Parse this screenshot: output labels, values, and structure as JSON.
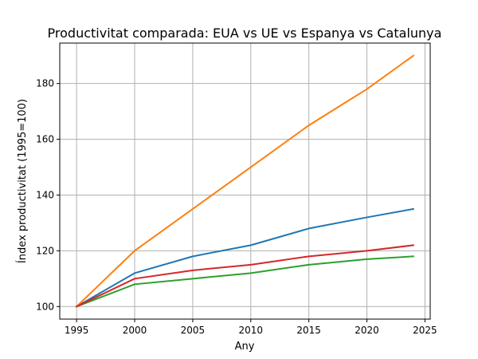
{
  "chart_data": {
    "type": "line",
    "title": "Productivitat comparada: EUA vs UE vs Espanya vs Catalunya",
    "xlabel": "Any",
    "ylabel": "Índex productivitat (1995=100)",
    "xlim": [
      1993.55,
      2025.45
    ],
    "ylim": [
      95.5,
      194.5
    ],
    "xticks": [
      1995,
      2000,
      2005,
      2010,
      2015,
      2020,
      2025
    ],
    "yticks": [
      100,
      120,
      140,
      160,
      180
    ],
    "grid": true,
    "legend": "none",
    "series": [
      {
        "color": "#1f77b4",
        "x": [
          1995,
          2000,
          2005,
          2010,
          2015,
          2020,
          2024
        ],
        "y": [
          100,
          112,
          118,
          122,
          128,
          132,
          135
        ]
      },
      {
        "color": "#ff7f0e",
        "x": [
          1995,
          2000,
          2005,
          2010,
          2015,
          2020,
          2024
        ],
        "y": [
          100,
          120,
          135,
          150,
          165,
          178,
          190
        ]
      },
      {
        "color": "#2ca02c",
        "x": [
          1995,
          2000,
          2005,
          2010,
          2015,
          2020,
          2024
        ],
        "y": [
          100,
          108,
          110,
          112,
          115,
          117,
          118
        ]
      },
      {
        "color": "#d62728",
        "x": [
          1995,
          2000,
          2005,
          2010,
          2015,
          2020,
          2024
        ],
        "y": [
          100,
          110,
          113,
          115,
          118,
          120,
          122
        ]
      }
    ]
  }
}
